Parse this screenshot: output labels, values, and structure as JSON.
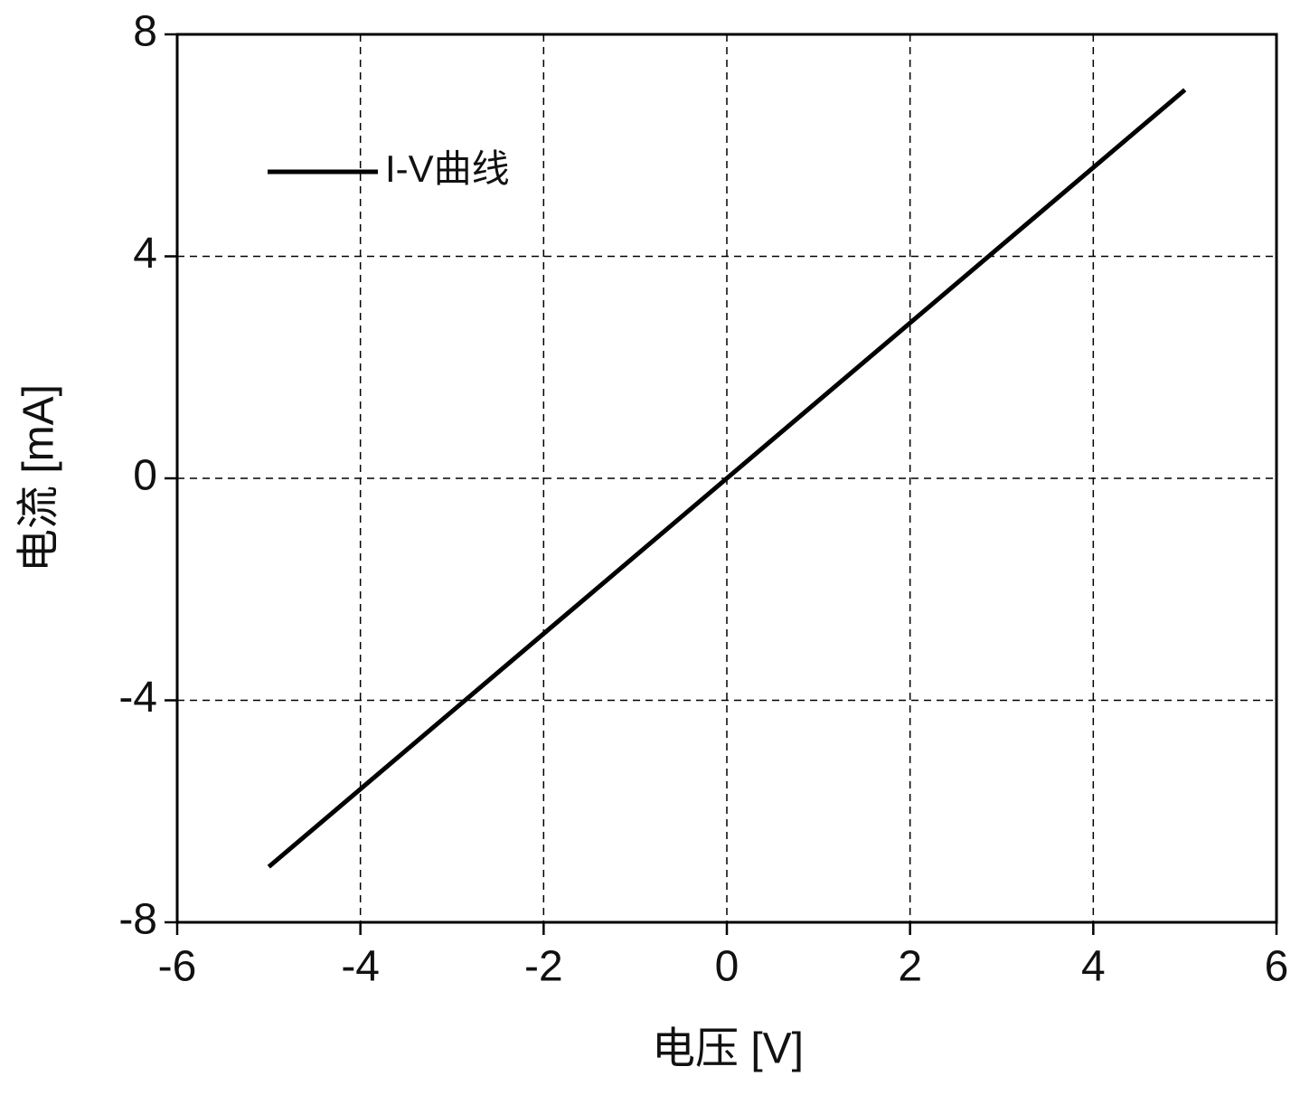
{
  "chart_data": {
    "type": "line",
    "x_label": "电压 [V]",
    "y_label": "电流 [mA]",
    "x": [
      -5,
      0,
      5
    ],
    "series": [
      {
        "name": "I-V曲线",
        "color": "#000000",
        "values": [
          -7,
          0,
          7
        ]
      }
    ],
    "xlim": [
      -6,
      6
    ],
    "xticks": [
      -6,
      -4,
      -2,
      0,
      2,
      4,
      6
    ],
    "ylim": [
      -8,
      8
    ],
    "yticks": [
      -8,
      -4,
      0,
      4,
      8
    ],
    "grid": true,
    "legend": "upper left"
  }
}
